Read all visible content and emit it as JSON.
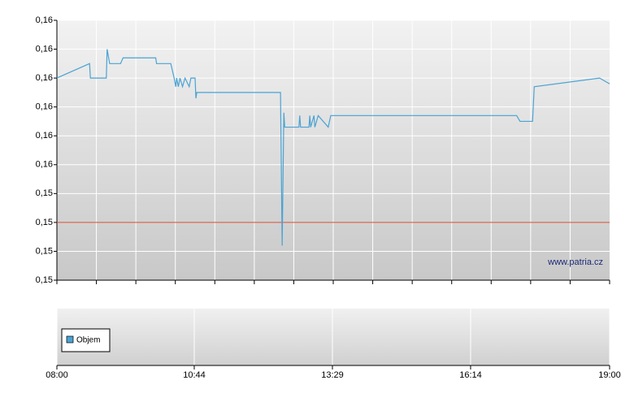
{
  "chart_data": {
    "type": "line",
    "x": [
      "08:00",
      "08:39",
      "08:40",
      "08:59",
      "09:00",
      "09:03",
      "09:16",
      "09:19",
      "09:58",
      "09:59",
      "10:16",
      "10:20",
      "10:22",
      "10:23",
      "10:25",
      "10:27",
      "10:30",
      "10:33",
      "10:38",
      "10:40",
      "10:45",
      "10:46",
      "10:47",
      "12:27",
      "12:29",
      "12:31",
      "12:32",
      "12:49",
      "12:50",
      "12:51",
      "13:01",
      "13:02",
      "13:03",
      "13:07",
      "13:08",
      "13:12",
      "13:24",
      "13:27",
      "17:09",
      "17:13",
      "17:28",
      "17:30",
      "18:48",
      "19:00"
    ],
    "series": [
      {
        "color": "#4aa3d3",
        "values": [
          0.1586,
          0.1591,
          0.1586,
          0.1586,
          0.1596,
          0.1591,
          0.1591,
          0.1593,
          0.1593,
          0.1591,
          0.1591,
          0.1586,
          0.1583,
          0.1586,
          0.1583,
          0.1586,
          0.1583,
          0.1586,
          0.1583,
          0.1586,
          0.1586,
          0.1579,
          0.1581,
          0.1581,
          0.1528,
          0.1574,
          0.1569,
          0.1569,
          0.1573,
          0.1569,
          0.1569,
          0.1573,
          0.1569,
          0.1573,
          0.1569,
          0.1573,
          0.1569,
          0.1573,
          0.1573,
          0.1571,
          0.1571,
          0.1583,
          0.1586,
          0.1584
        ]
      }
    ],
    "reference_line": {
      "value": 0.1536,
      "color": "#d04a30"
    },
    "ylim": [
      0.1516,
      0.1606
    ],
    "yticks": [
      {
        "value": 0.1516,
        "label": "0,15"
      },
      {
        "value": 0.1526,
        "label": "0,15"
      },
      {
        "value": 0.1536,
        "label": "0,15"
      },
      {
        "value": 0.1546,
        "label": "0,15"
      },
      {
        "value": 0.1556,
        "label": "0,16"
      },
      {
        "value": 0.1566,
        "label": "0,16"
      },
      {
        "value": 0.1576,
        "label": "0,16"
      },
      {
        "value": 0.1586,
        "label": "0,16"
      },
      {
        "value": 0.1596,
        "label": "0,16"
      },
      {
        "value": 0.1606,
        "label": "0,16"
      }
    ],
    "xlim": [
      "08:00",
      "19:00"
    ],
    "xticks": [
      "08:00",
      "10:44",
      "13:29",
      "16:14",
      "19:00"
    ],
    "watermark": "www.patria.cz",
    "volume_legend": "Objem",
    "grid": true
  }
}
